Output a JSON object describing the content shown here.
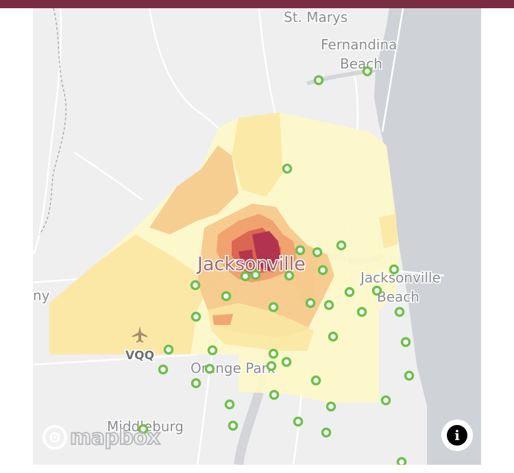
{
  "header": {
    "color": "#7a2c43"
  },
  "map": {
    "basemap": "light-grey",
    "choropleth_palette": [
      "#fdf8c6",
      "#fbe7a4",
      "#f6c98c",
      "#ef9f6e",
      "#d9634f",
      "#b0304f"
    ],
    "marker_color": "#6cc04a",
    "labels": {
      "st_marys": "St. Marys",
      "fernandina_1": "Fernandina",
      "fernandina_2": "Beach",
      "jacksonville": "Jacksonville",
      "jax_beach_1": "Jacksonville",
      "jax_beach_2": "Beach",
      "edge_label": "ny",
      "vqq": "VQQ",
      "orange_park": "Orange Park",
      "middleburg": "Middleburg"
    },
    "marker_count": 42
  },
  "attribution": {
    "logo_text": "mapbox",
    "logo_icon": "mapbox-logo-icon"
  },
  "controls": {
    "info_label": "i",
    "info_icon": "info-icon"
  }
}
